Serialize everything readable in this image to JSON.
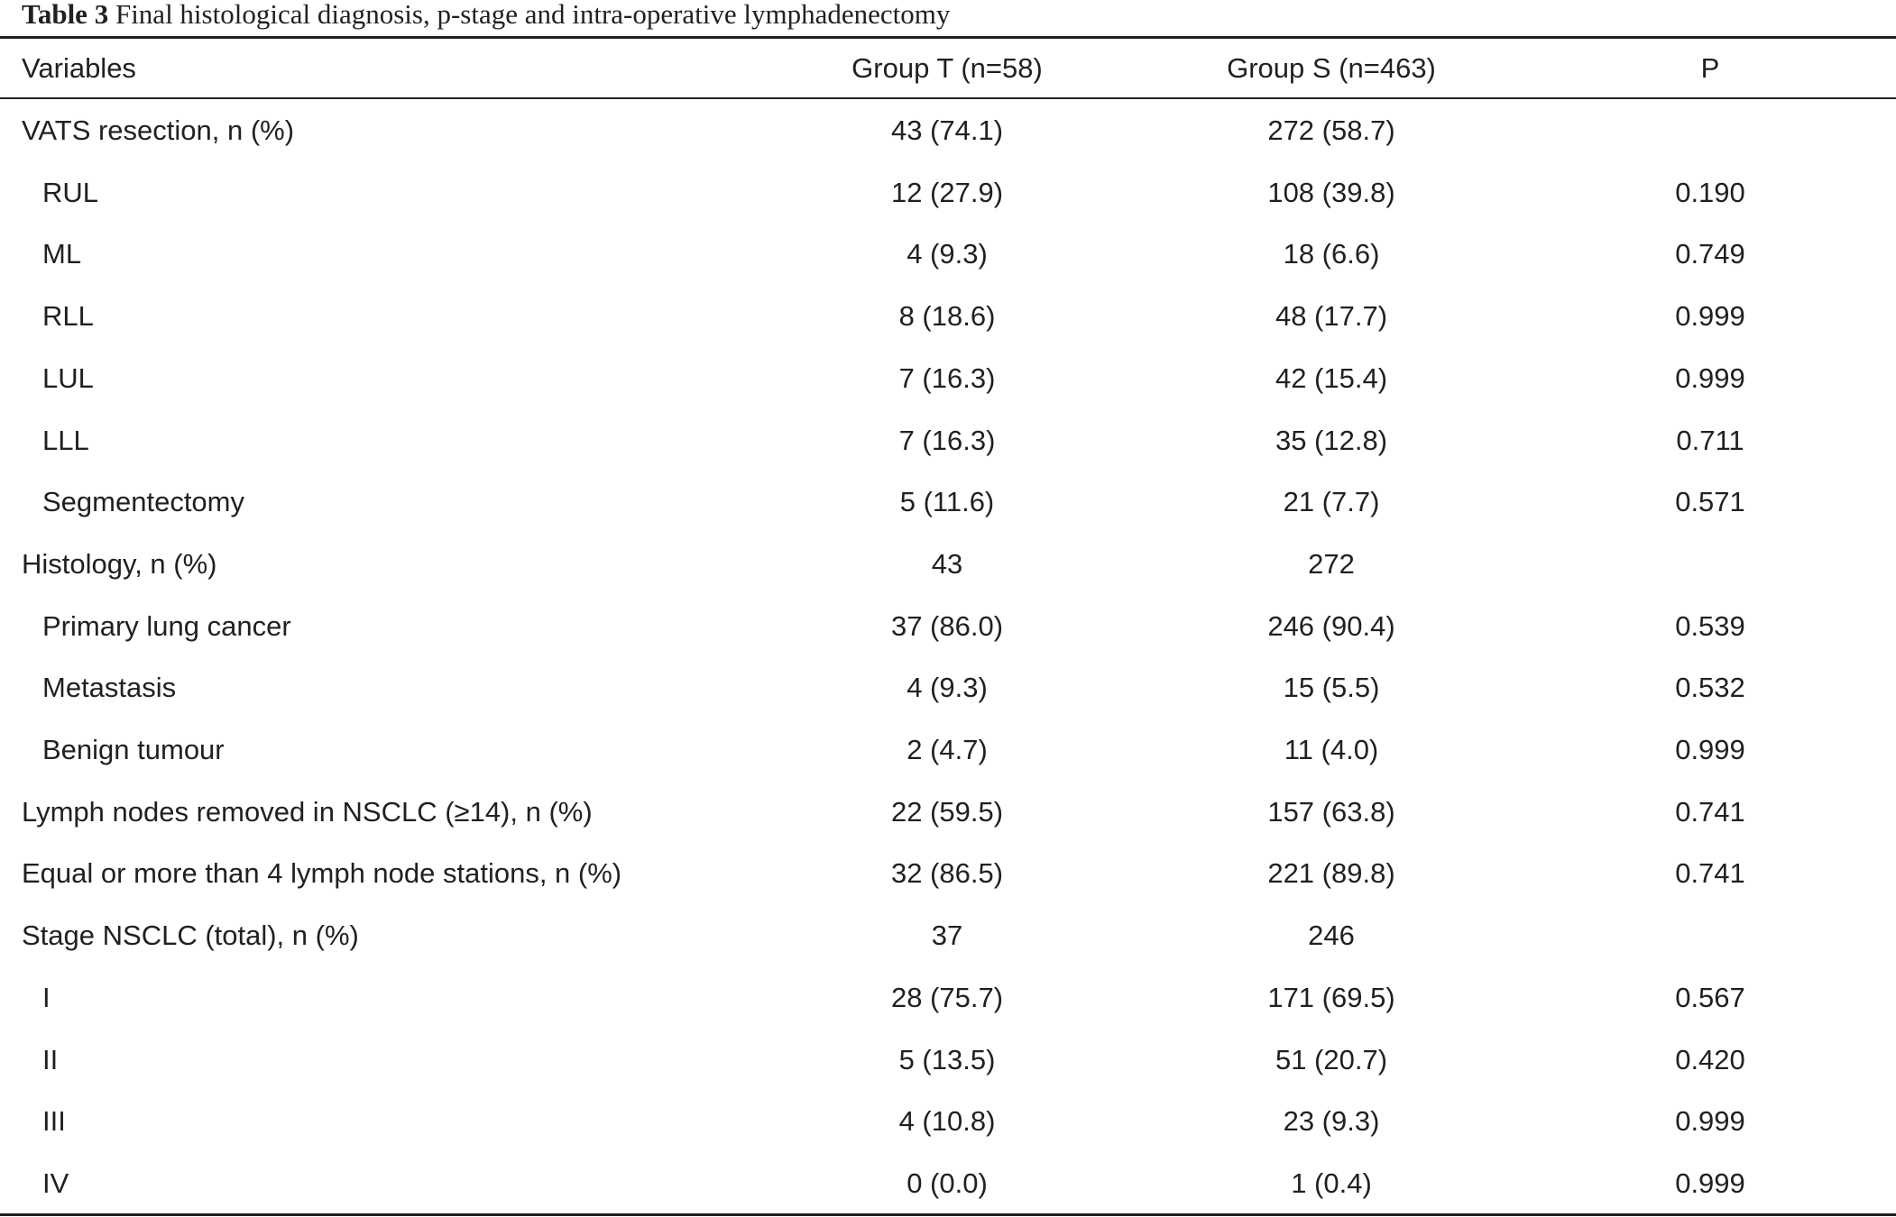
{
  "caption": {
    "label": "Table 3",
    "text": "Final histological diagnosis, p-stage and intra-operative lymphadenectomy"
  },
  "header": {
    "variables": "Variables",
    "group_t": "Group T (n=58)",
    "group_s": "Group S (n=463)",
    "p": "P"
  },
  "rows": [
    {
      "variable": "VATS resection, n (%)",
      "indent": false,
      "group_t": "43 (74.1)",
      "group_s": "272 (58.7)",
      "p": ""
    },
    {
      "variable": "RUL",
      "indent": true,
      "group_t": "12 (27.9)",
      "group_s": "108 (39.8)",
      "p": "0.190"
    },
    {
      "variable": "ML",
      "indent": true,
      "group_t": "4 (9.3)",
      "group_s": "18 (6.6)",
      "p": "0.749"
    },
    {
      "variable": "RLL",
      "indent": true,
      "group_t": "8 (18.6)",
      "group_s": "48 (17.7)",
      "p": "0.999"
    },
    {
      "variable": "LUL",
      "indent": true,
      "group_t": "7 (16.3)",
      "group_s": "42 (15.4)",
      "p": "0.999"
    },
    {
      "variable": "LLL",
      "indent": true,
      "group_t": "7 (16.3)",
      "group_s": "35 (12.8)",
      "p": "0.711"
    },
    {
      "variable": "Segmentectomy",
      "indent": true,
      "group_t": "5 (11.6)",
      "group_s": "21 (7.7)",
      "p": "0.571"
    },
    {
      "variable": "Histology, n (%)",
      "indent": false,
      "group_t": "43",
      "group_s": "272",
      "p": ""
    },
    {
      "variable": "Primary lung cancer",
      "indent": true,
      "group_t": "37 (86.0)",
      "group_s": "246 (90.4)",
      "p": "0.539"
    },
    {
      "variable": "Metastasis",
      "indent": true,
      "group_t": "4 (9.3)",
      "group_s": "15 (5.5)",
      "p": "0.532"
    },
    {
      "variable": "Benign tumour",
      "indent": true,
      "group_t": "2 (4.7)",
      "group_s": "11 (4.0)",
      "p": "0.999"
    },
    {
      "variable": "Lymph nodes removed in NSCLC (≥14), n (%)",
      "indent": false,
      "group_t": "22 (59.5)",
      "group_s": "157 (63.8)",
      "p": "0.741"
    },
    {
      "variable": "Equal or more than 4 lymph node stations, n (%)",
      "indent": false,
      "group_t": "32 (86.5)",
      "group_s": "221 (89.8)",
      "p": "0.741"
    },
    {
      "variable": "Stage NSCLC (total), n (%)",
      "indent": false,
      "group_t": "37",
      "group_s": "246",
      "p": ""
    },
    {
      "variable": "I",
      "indent": true,
      "group_t": "28 (75.7)",
      "group_s": "171 (69.5)",
      "p": "0.567"
    },
    {
      "variable": "II",
      "indent": true,
      "group_t": "5 (13.5)",
      "group_s": "51 (20.7)",
      "p": "0.420"
    },
    {
      "variable": "III",
      "indent": true,
      "group_t": "4 (10.8)",
      "group_s": "23 (9.3)",
      "p": "0.999"
    },
    {
      "variable": "IV",
      "indent": true,
      "group_t": "0 (0.0)",
      "group_s": "1 (0.4)",
      "p": "0.999"
    }
  ]
}
